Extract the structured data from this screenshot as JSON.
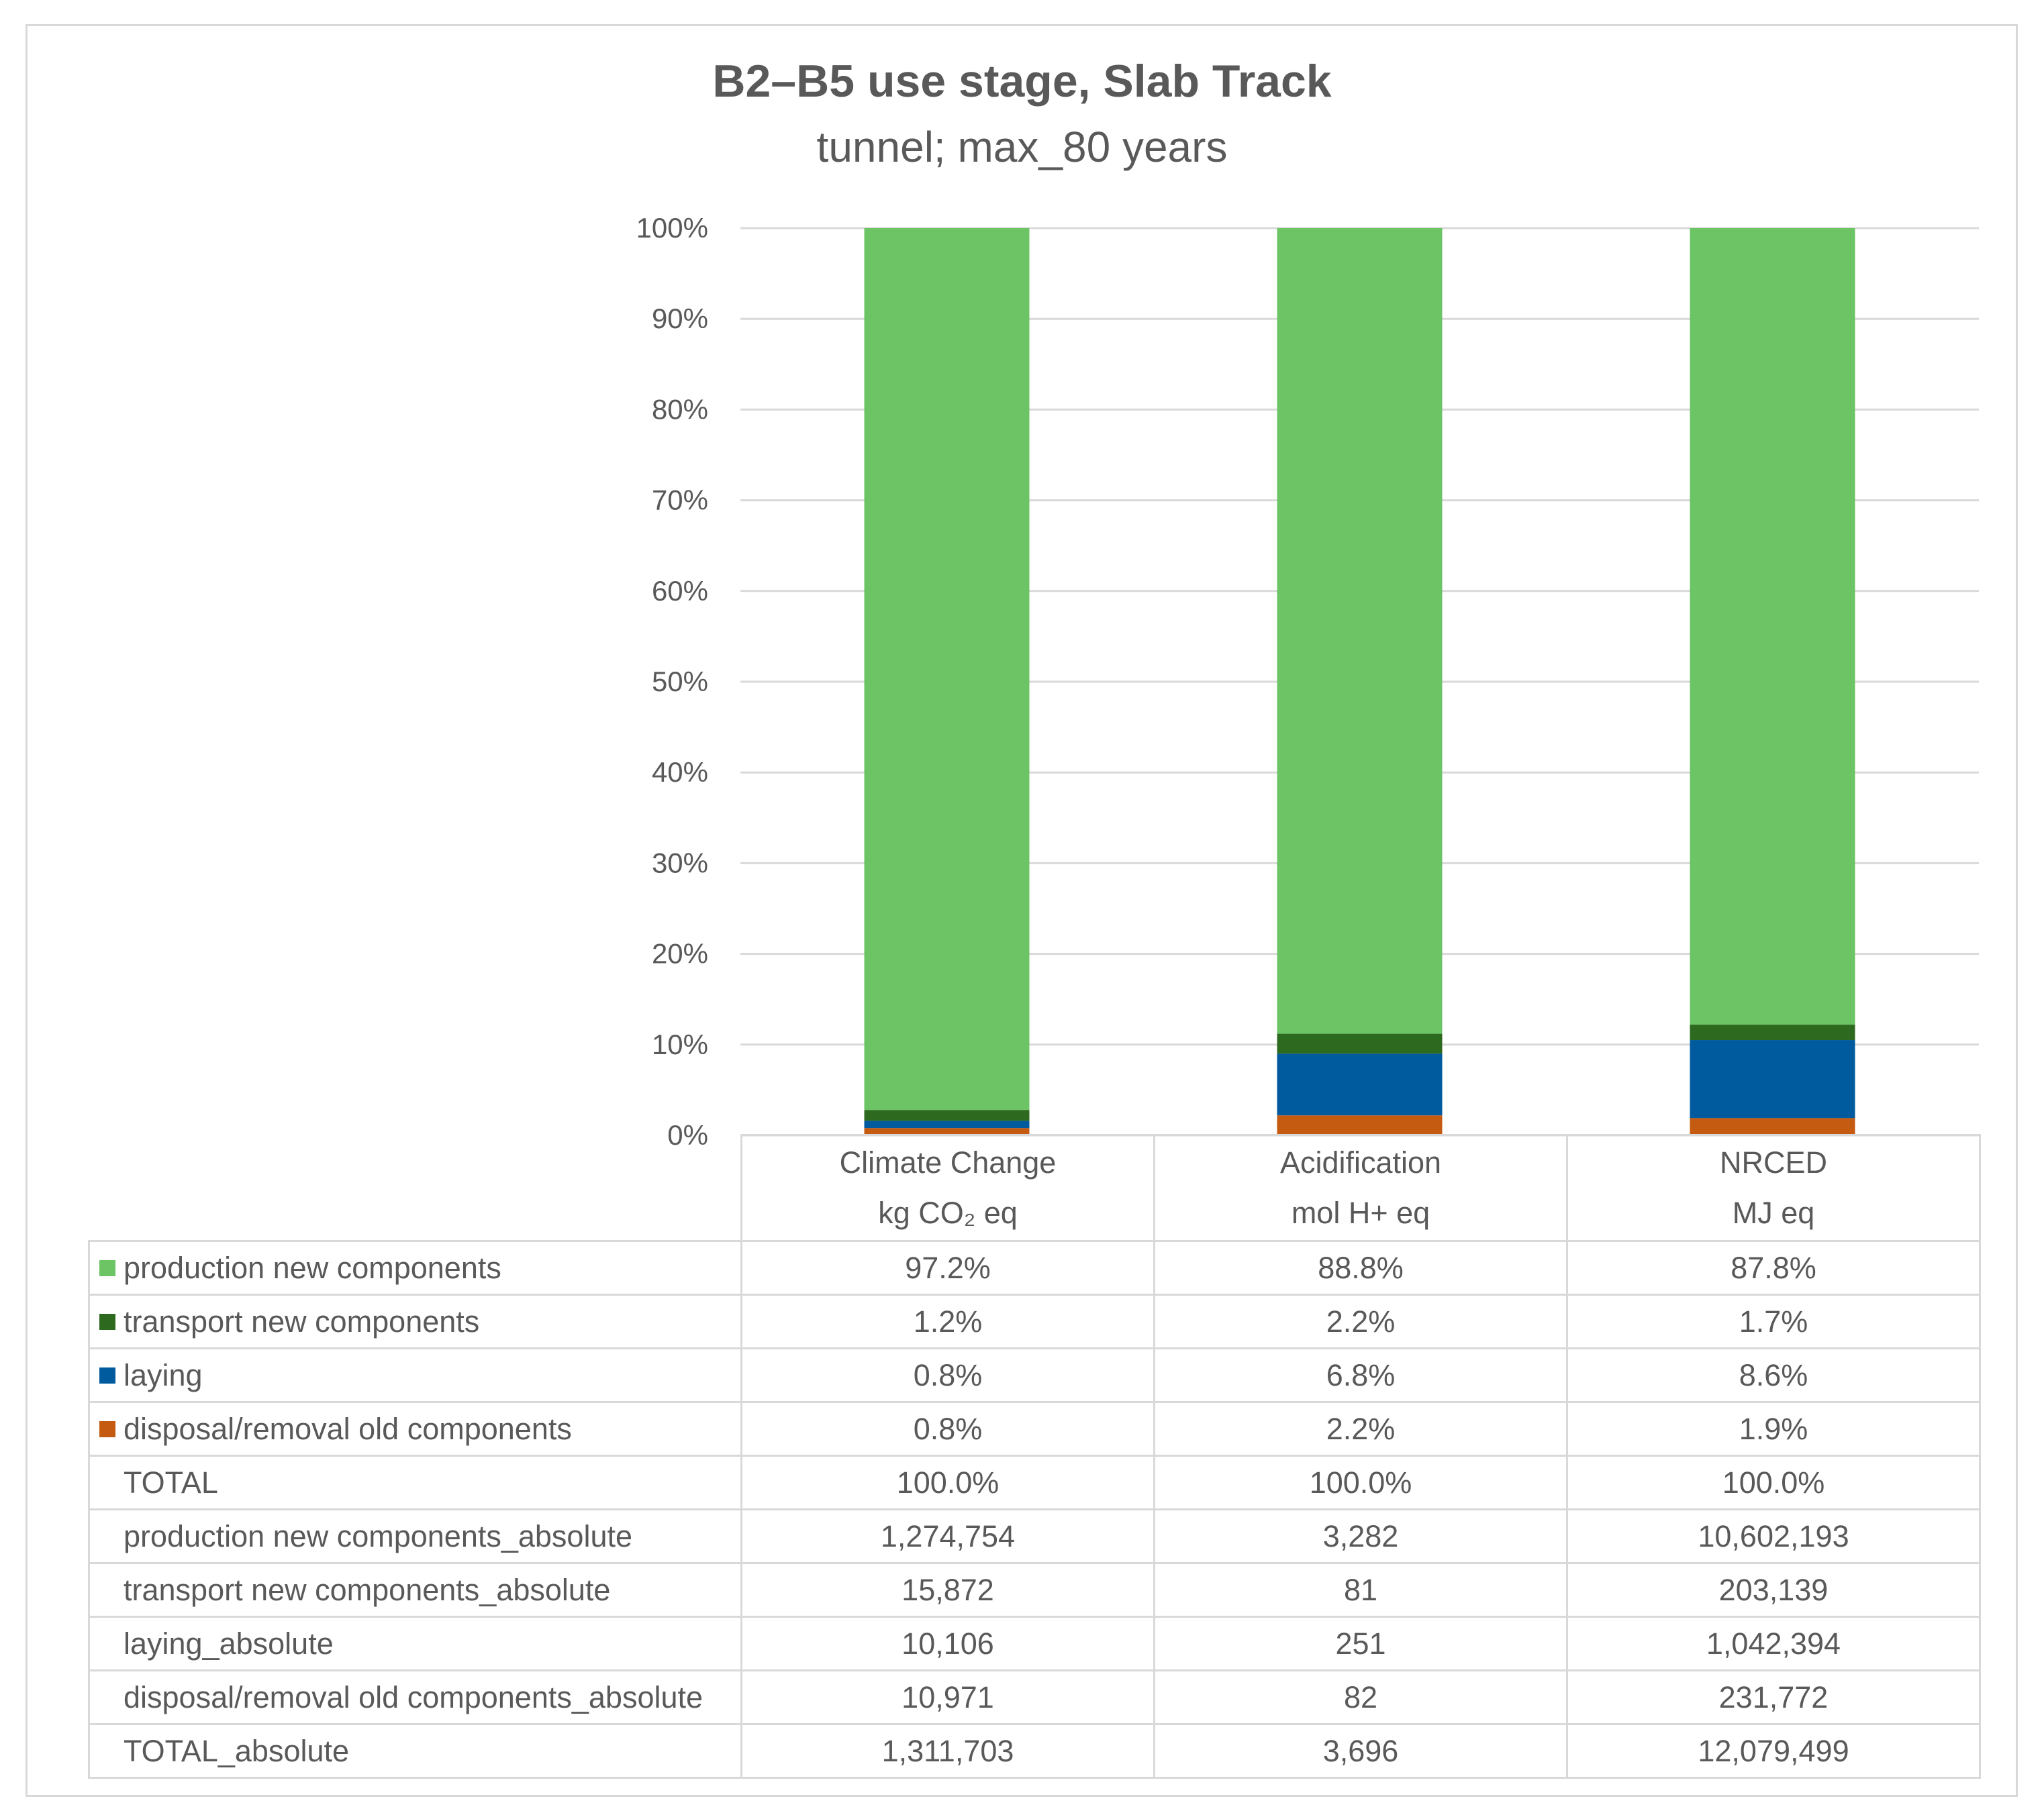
{
  "chart_data": {
    "type": "bar",
    "stacked": true,
    "title": "B2–B5 use stage, Slab Track",
    "subtitle": "tunnel; max_80 years",
    "categories": [
      "Climate Change",
      "Acidification",
      "NRCED"
    ],
    "category_units": [
      "kg CO₂ eq",
      "mol H+ eq",
      "MJ eq"
    ],
    "ylim": [
      0,
      100
    ],
    "yticks": [
      "0%",
      "10%",
      "20%",
      "30%",
      "40%",
      "50%",
      "60%",
      "70%",
      "80%",
      "90%",
      "100%"
    ],
    "grid": true,
    "series": [
      {
        "name": "disposal/removal old components",
        "color": "#c55a11",
        "values": [
          0.8,
          2.2,
          1.9
        ],
        "labels": [
          "0.8%",
          "2.2%",
          "1.9%"
        ]
      },
      {
        "name": "laying",
        "color": "#005a9e",
        "values": [
          0.8,
          6.8,
          8.6
        ],
        "labels": [
          "0.8%",
          "6.8%",
          "8.6%"
        ]
      },
      {
        "name": "transport new components",
        "color": "#2d6a1f",
        "values": [
          1.2,
          2.2,
          1.7
        ],
        "labels": [
          "1.2%",
          "2.2%",
          "1.7%"
        ]
      },
      {
        "name": "production new components",
        "color": "#6cc464",
        "values": [
          97.2,
          88.8,
          87.8
        ],
        "labels": [
          "97.2%",
          "88.8%",
          "87.8%"
        ]
      }
    ]
  },
  "table": {
    "legend_rows_order": [
      3,
      2,
      1,
      0
    ],
    "extra_rows": [
      {
        "label": "TOTAL",
        "values": [
          "100.0%",
          "100.0%",
          "100.0%"
        ]
      },
      {
        "label": "production new components_absolute",
        "values": [
          "1,274,754",
          "3,282",
          "10,602,193"
        ]
      },
      {
        "label": "transport new components_absolute",
        "values": [
          "15,872",
          "81",
          "203,139"
        ]
      },
      {
        "label": "laying_absolute",
        "values": [
          "10,106",
          "251",
          "1,042,394"
        ]
      },
      {
        "label": "disposal/removal old components_absolute",
        "values": [
          "10,971",
          "82",
          "231,772"
        ]
      },
      {
        "label": "TOTAL_absolute",
        "values": [
          "1,311,703",
          "3,696",
          "12,079,499"
        ]
      }
    ]
  }
}
